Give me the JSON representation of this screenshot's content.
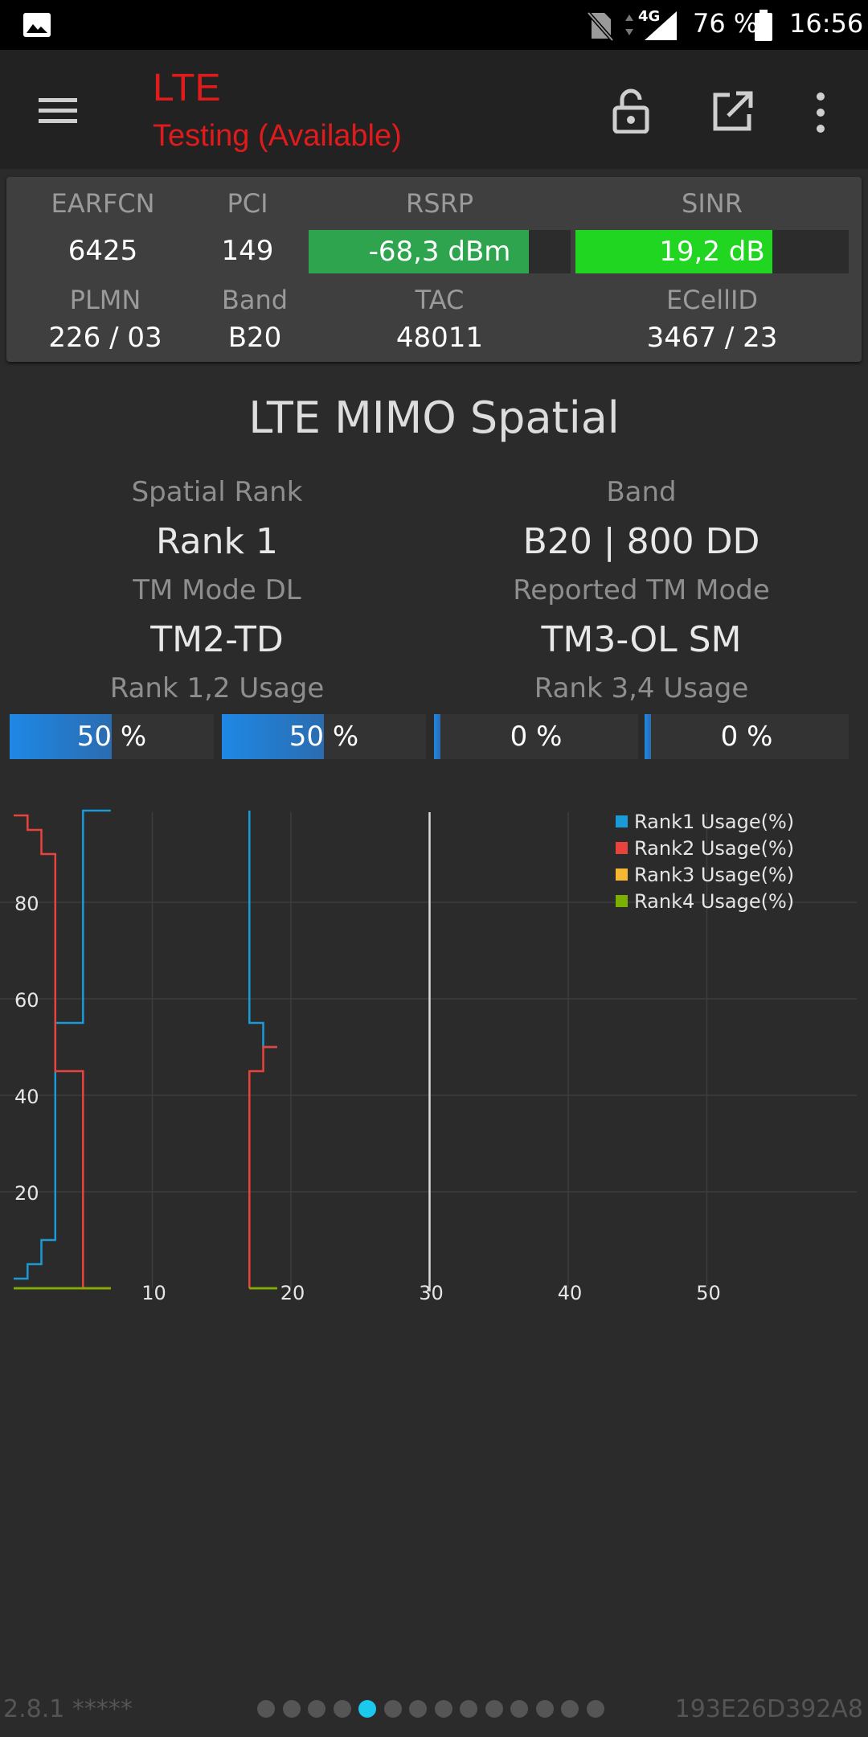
{
  "status_bar": {
    "network_label": "4G",
    "battery_percent": "76 %",
    "time": "16:56"
  },
  "toolbar": {
    "title": "LTE",
    "subtitle": "Testing (Available)"
  },
  "cell_info": {
    "earfcn_label": "EARFCN",
    "earfcn": "6425",
    "pci_label": "PCI",
    "pci": "149",
    "rsrp_label": "RSRP",
    "rsrp": "-68,3 dBm",
    "rsrp_level": 0.84,
    "sinr_label": "SINR",
    "sinr": "19,2 dB",
    "sinr_level": 0.72,
    "plmn_label": "PLMN",
    "plmn": "226 / 03",
    "band_label": "Band",
    "band": "B20",
    "tac_label": "TAC",
    "tac": "48011",
    "ecellid_label": "ECellID",
    "ecellid": "3467 / 23",
    "colors": {
      "rsrp": "#2ea44f",
      "sinr": "#21d621"
    }
  },
  "mimo": {
    "title": "LTE MIMO Spatial",
    "spatial_rank_label": "Spatial Rank",
    "spatial_rank": "Rank 1",
    "band_label": "Band",
    "band": "B20 | 800 DD",
    "tm_mode_dl_label": "TM Mode DL",
    "tm_mode_dl": "TM2-TD",
    "reported_tm_label": "Reported TM Mode",
    "reported_tm": "TM3-OL SM",
    "rank12_label": "Rank 1,2 Usage",
    "rank34_label": "Rank 3,4 Usage",
    "usage": [
      {
        "text": "50 %",
        "value": 50
      },
      {
        "text": "50 %",
        "value": 50
      },
      {
        "text": "0 %",
        "value": 0
      },
      {
        "text": "0 %",
        "value": 0
      }
    ]
  },
  "chart_data": {
    "type": "line",
    "x_ticks": [
      "10",
      "20",
      "30",
      "40",
      "50"
    ],
    "y_ticks": [
      "20",
      "40",
      "60",
      "80"
    ],
    "xlim": [
      0,
      60
    ],
    "ylim": [
      0,
      100
    ],
    "grid": true,
    "legend_position": "top-right",
    "cursor_x": 30,
    "series": [
      {
        "name": "Rank1 Usage(%)",
        "color": "#1a9bd7",
        "points": [
          [
            0,
            2
          ],
          [
            1,
            2
          ],
          [
            1,
            5
          ],
          [
            2,
            5
          ],
          [
            2,
            10
          ],
          [
            3,
            10
          ],
          [
            3,
            55
          ],
          [
            5,
            55
          ],
          [
            5,
            99
          ],
          [
            7,
            99
          ]
        ],
        "points2": [
          [
            17,
            99
          ],
          [
            17,
            55
          ],
          [
            18,
            55
          ],
          [
            18,
            50
          ],
          [
            19,
            50
          ]
        ]
      },
      {
        "name": "Rank2 Usage(%)",
        "color": "#e8433c",
        "points": [
          [
            0,
            98
          ],
          [
            1,
            98
          ],
          [
            1,
            95
          ],
          [
            2,
            95
          ],
          [
            2,
            90
          ],
          [
            3,
            90
          ],
          [
            3,
            45
          ],
          [
            5,
            45
          ],
          [
            5,
            0
          ],
          [
            7,
            0
          ]
        ],
        "points2": [
          [
            17,
            0
          ],
          [
            17,
            45
          ],
          [
            18,
            45
          ],
          [
            18,
            50
          ],
          [
            19,
            50
          ]
        ]
      },
      {
        "name": "Rank3 Usage(%)",
        "color": "#f5b731",
        "points": [
          [
            0,
            0
          ],
          [
            7,
            0
          ]
        ],
        "points2": [
          [
            17,
            0
          ],
          [
            19,
            0
          ]
        ]
      },
      {
        "name": "Rank4 Usage(%)",
        "color": "#7cb000",
        "points": [
          [
            0,
            0
          ],
          [
            7,
            0
          ]
        ],
        "points2": [
          [
            17,
            0
          ],
          [
            19,
            0
          ]
        ]
      }
    ]
  },
  "footer": {
    "version": "2.8.1 *****",
    "device_id": "193E26D392A8",
    "page_count": 14,
    "active_page": 4
  }
}
